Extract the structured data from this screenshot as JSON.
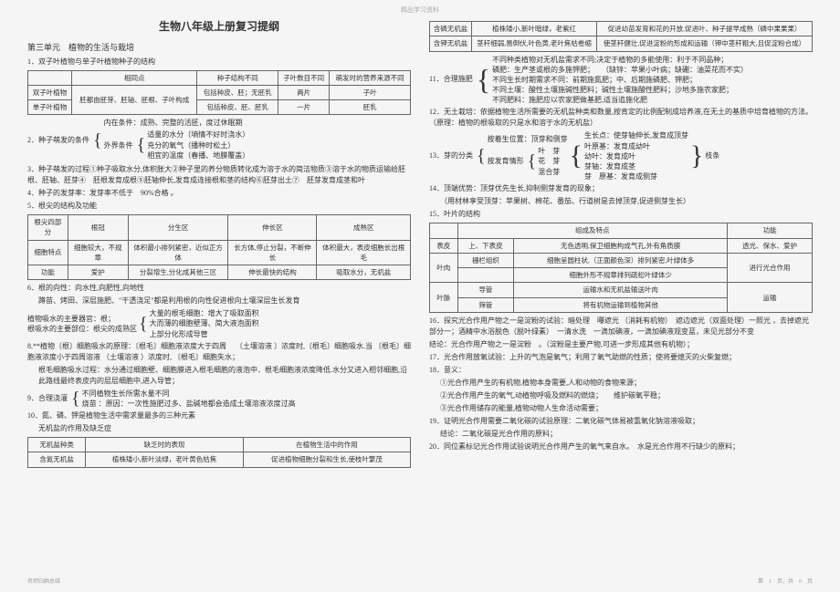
{
  "watermark": "精品学习资料",
  "title": "生物八年级上册复习提纲",
  "unit_title": "第三单元　植物的生活与栽培",
  "item1_head": "1．双子叶植物与单子叶植物种子的结构",
  "table1": {
    "headers": [
      "",
      "相同点",
      "种子结构不同",
      "子叶数目不同",
      "萌发时的营养来源不同"
    ],
    "rows": [
      [
        "双子叶植物",
        "胚都由胚芽、胚轴、胚根、子叶构成",
        "包括种皮、胚；无胚乳",
        "两片",
        "子叶"
      ],
      [
        "单子叶植物",
        "",
        "包括种皮、胚、胚乳",
        "一片",
        "胚乳"
      ]
    ]
  },
  "item2_head": "2．种子萌发的条件",
  "item2_a": "内在条件：成熟、完整的活胚，度过休眠期",
  "item2_b": "外界条件",
  "item2_b1": "适量的水分（墒情不好时浇水）",
  "item2_b2": "充分的氧气（播种时松土）",
  "item2_b3": "相宜的温度（春播、地膜覆盖）",
  "item3": "3．种子萌发的过程①种子吸取水分,体积胀大②种子里的养分物质转化成为溶于水的简洁物质③溶于水的物质运输给胚根、胚轴、胚芽④　胚根发育成根⑤胚轴伸长,发育成连接根和茎的结构⑥胚芽出土⑦　胚芽发育成茎和叶",
  "item4": "4．种子的发芽率：发芽率不低于　90%合格 。",
  "item5_head": "5．根尖的结构及功能",
  "table2": {
    "headers": [
      "根尖四部分",
      "根冠",
      "分生区",
      "伸长区",
      "成熟区"
    ],
    "rows": [
      [
        "细胞特点",
        "细胞较大，不规章",
        "体积最小排列紧密，近似正方体",
        "长方体,停止分裂，不断伸长",
        "体积最大，表皮细胞长出根毛"
      ],
      [
        "功能",
        "爱护",
        "分裂增生,分化成其他三区",
        "伸长最快的结构",
        "吸取水分，无机盐"
      ]
    ]
  },
  "item6_head": "6．根的向性：向水性,向肥性,向地性",
  "item6_a": "蹲苗、烤田、深层施肥、\"干透浇足\"都是利用根的向性促进根向土壤深层生长发育",
  "item6_b": "植物吸水的主要器官：根；",
  "item6_c": "根吸水的主要部位：根尖的成熟区",
  "item6_c1": "大量的根毛细胞：增大了吸取面积",
  "item6_c2": "大而薄的细胞壁薄、简大液泡面积",
  "item6_c3": "上部分化形成导管",
  "item8": "8.**植物〔根〕细胞吸水的原理：〔根毛〕细胞液浓度大于四周　 〔土壤溶液 〕浓度时,〔根毛〕细胞吸水.当 〔根毛〕细胞液浓度小于四周溶液 （土壤溶液 ）浓度时, 〔根毛〕细胞失水；",
  "item8_a": "根毛细胞吸水过程：水分通过细胞壁、细胞膜进入根毛细胞的液泡中．根毛细胞液浓度降低.水分又进入相邻细胞,沿此路线最终表皮内的层层细胞中,进入导管；",
  "item9_head": "9．合理浇灌",
  "item9_a": "不同植物生长所需水量不同",
  "item9_b": "烧苗 ：原因：一次性施肥过多、盐碱地都会造成土壤溶液浓度过高",
  "item10_head": "10．氮、磷、钾是植物生活中需求量最多的三种元素",
  "item10_sub": "无机盐的作用及缺乏症",
  "table3": {
    "headers": [
      "无机盐种类",
      "缺乏时的表现",
      "在植物生活中的作用"
    ],
    "rows": [
      [
        "含氮无机盐",
        "植株矮小,新叶淡绿，老叶黄色枯焦",
        "促进植物细胞分裂和生长,使枝叶繁茂"
      ],
      [
        "含磷无机盐",
        "植株矮小,新叶暗绿，老紫红",
        "促进幼苗发育和花的开放,促进叶、种子提早成熟（磷中果果果）"
      ],
      [
        "含钾无机盐",
        "茎秆细弱,易倒伏,叶色黄,老叶焦枯卷缩",
        "使茎秆健壮,促进淀粉的形成和运输（钾中茎秆粗大,且促淀粉合成）"
      ]
    ]
  },
  "item11_head": "11．合理施肥",
  "item11_a": "不同种类植物对无机盐需求不同;决定于植物的多能使用：利于不同品种；",
  "item11_b": "磷肥：生产茎或根的多施钾肥；　　（缺锌：苹果小叶病；缺硼：油菜花而不实）",
  "item11_c": "不同生长时期需求不同：前期施氮肥；中、后期施磷肥、钾肥；",
  "item11_d": "不同土壤：酸性土壤施碱性肥料；碱性土壤施酸性肥料；沙地多施农家肥；",
  "item11_e": "不同肥料：施肥应以农家肥做基肥,适当追施化肥",
  "item12": "12．无土栽培：依据植物生活所需要的无机盐种类和数量,按肯定的比例配制成培养液,在无土的基质中培育植物的方法。　　（原理：植物的根吸取的只是水和溶于水的无机盐）",
  "item13_head": "13．芽的分类",
  "item13_a": "按着生位置：顶芽和侧芽",
  "item13_b": "按发育情形",
  "item13_b1": "叶　芽",
  "item13_b2": "花　芽",
  "item13_b3": "混合芽",
  "item13_r1": "生长点：使芽轴伸长,发育成顶芽",
  "item13_r2": "叶原基：发育成幼叶",
  "item13_r3": "幼叶：发育成叶",
  "item13_r4": "芽轴：发育成茎",
  "item13_r5": "芽　原基：发育成侧芽",
  "item13_end": "枝条",
  "item14": "14．顶端优势：顶芽优先生长,抑制侧芽发育的现象；",
  "item14_a": "（用材林享受顶芽：苹果树、棉花、番茄、行道树是去掉顶芽,促进侧芽生长）",
  "item15_head": "15．叶片的结构",
  "table4": {
    "headers": [
      "",
      "组成及特点",
      "功能"
    ],
    "rows": [
      [
        "表皮",
        "上、下表皮",
        "无色透明,保卫细胞构成气孔,外有角质膜",
        "透光、保水、爱护"
      ],
      [
        "叶肉",
        "栅栏组织",
        "细胞呈圆柱状,（正面颜色深）排列紧密,叶绿体多",
        "进行光合作用"
      ],
      [
        "",
        "",
        "细胞外形不规章排列疏松叶绿体少",
        ""
      ],
      [
        "叶脉",
        "导管",
        "运输水和无机盐输送叶肉",
        "运输"
      ],
      [
        "",
        "筛管",
        "将有机物运输到植物其他",
        ""
      ]
    ]
  },
  "item16": "16．探究光合作用产物之一是淀粉的试验：暗处理　曝遮光 （消耗有机物）　遮边遮光（双面处理）一照光 ，去掉遮光部分一；酒精中水浴脱色（脱叶绿素）　一清水洗　一滴加碘液，一滴加碘液观变蓝，未见光部分不变",
  "item16_a": "结论：光合作用产物之一是淀粉　。（淀粉是主要产物,可进一步形成其他有机物）；",
  "item17": "17．光合作用放氧试验：上升的气泡是氧气；利用了氧气助燃的性质；使将要熄灭的火柴复燃；",
  "item18_head": "18．意义：",
  "item18_a": "①光合作用产生的有机物,植物本身需要,人和动物的食物来源；",
  "item18_b": "②光合作用产生的氧气,动植物呼吸及燃料的燃烧；　　维护碳氧平稳；",
  "item18_c": "③光合作用储存的能量,植物动物人生命活动需要；",
  "item19": "19．证明光合作用需要二氧化碳的试验原理：二氧化碳气体易被氢氧化钠溶液吸取；",
  "item19_a": "结论：二氧化碳是光合作用的原料；",
  "item20": "20．同位素标记光合作用试验说明光合作用产生的氧气来自水。　水是光合作用不行缺少的原料；",
  "footer_left": "名师归纳总结",
  "footer_right": "第　1　页，共　6　页"
}
